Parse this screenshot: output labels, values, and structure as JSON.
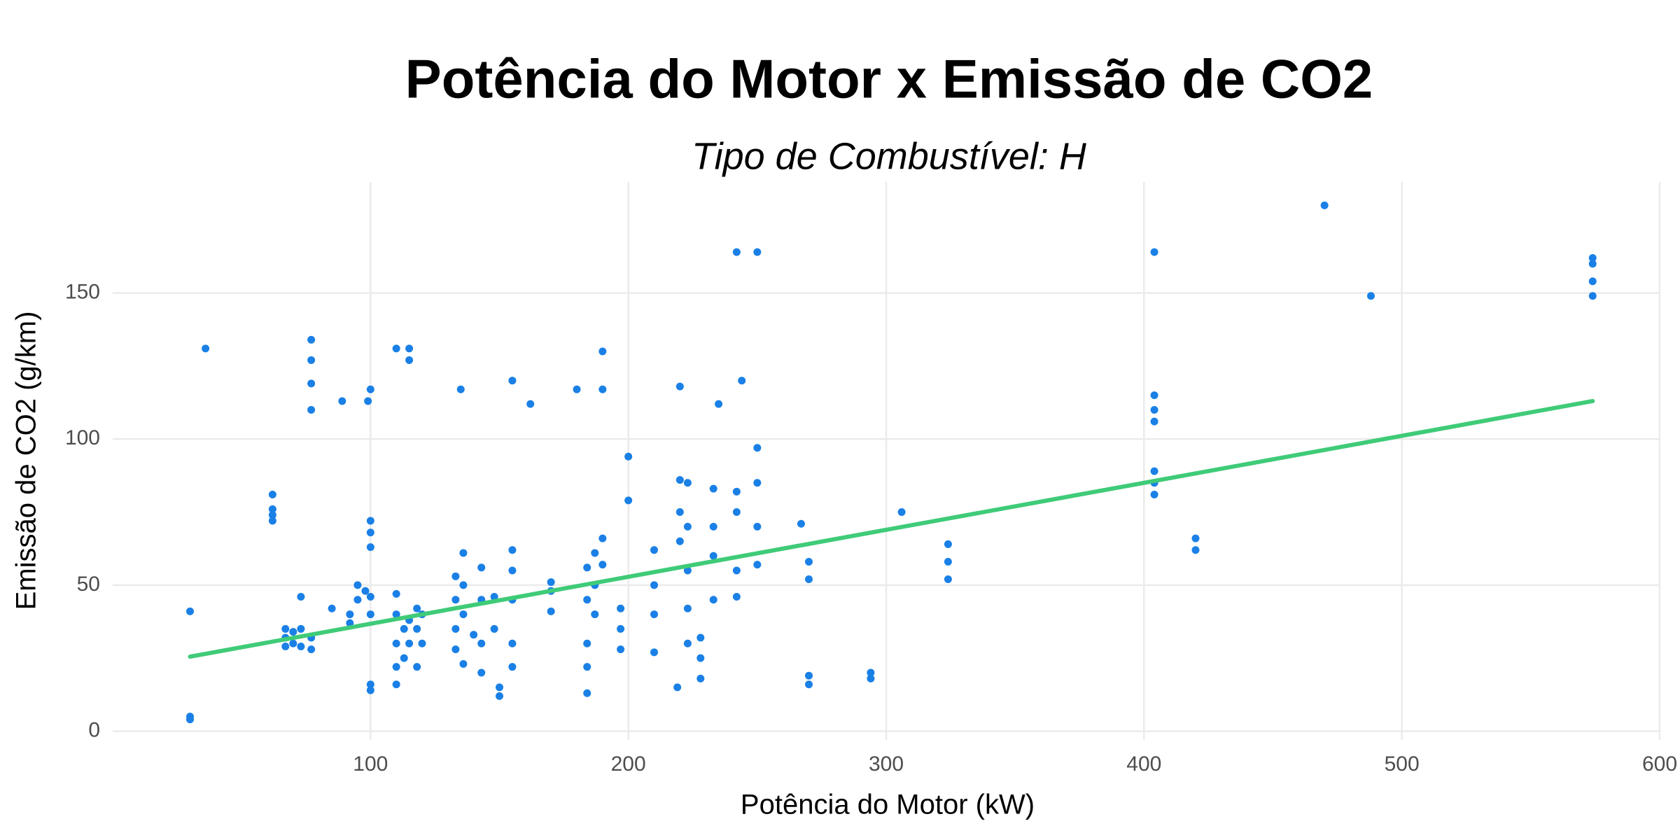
{
  "chart_data": {
    "type": "scatter",
    "title": "Potência do Motor x Emissão de CO2",
    "subtitle": "Tipo de Combustível: H",
    "x_label": "Potência do Motor (kW)",
    "y_label": "Emissão de CO2 (g/km)",
    "xlim": [
      0,
      600
    ],
    "xticks": [
      100,
      200,
      300,
      400,
      500,
      600
    ],
    "ylim": [
      -3,
      188
    ],
    "yticks": [
      0,
      50,
      100,
      150
    ],
    "grid": true,
    "points": {
      "color": "#1a80e6",
      "x": [
        30,
        30,
        30,
        36,
        62,
        62,
        62,
        62,
        67,
        67,
        67,
        70,
        70,
        73,
        73,
        73,
        77,
        77,
        77,
        77,
        77,
        77,
        85,
        89,
        92,
        92,
        95,
        95,
        98,
        100,
        99,
        100,
        100,
        100,
        100,
        100,
        100,
        100,
        110,
        110,
        110,
        110,
        110,
        110,
        113,
        113,
        115,
        115,
        115,
        115,
        118,
        118,
        118,
        120,
        120,
        133,
        133,
        133,
        133,
        135,
        136,
        136,
        136,
        136,
        140,
        143,
        143,
        143,
        143,
        148,
        148,
        150,
        150,
        155,
        155,
        155,
        155,
        155,
        155,
        162,
        170,
        170,
        170,
        180,
        184,
        184,
        184,
        184,
        184,
        187,
        187,
        187,
        190,
        190,
        190,
        190,
        197,
        197,
        197,
        200,
        200,
        210,
        210,
        210,
        210,
        219,
        220,
        220,
        220,
        220,
        223,
        223,
        223,
        223,
        223,
        228,
        228,
        228,
        233,
        233,
        233,
        233,
        235,
        242,
        242,
        242,
        242,
        242,
        244,
        250,
        250,
        250,
        250,
        250,
        267,
        270,
        270,
        270,
        270,
        294,
        294,
        306,
        324,
        324,
        324,
        404,
        404,
        404,
        404,
        404,
        404,
        404,
        420,
        420,
        470,
        488,
        574,
        574,
        574,
        574
      ],
      "y": [
        41,
        5,
        4,
        131,
        81,
        76,
        74,
        72,
        35,
        32,
        29,
        34,
        30,
        46,
        35,
        29,
        134,
        127,
        119,
        110,
        32,
        28,
        42,
        113,
        40,
        37,
        50,
        45,
        48,
        117,
        113,
        72,
        68,
        63,
        46,
        40,
        16,
        14,
        131,
        47,
        40,
        30,
        22,
        16,
        35,
        25,
        131,
        127,
        38,
        30,
        42,
        35,
        22,
        40,
        30,
        53,
        45,
        35,
        28,
        117,
        61,
        50,
        40,
        23,
        33,
        56,
        45,
        30,
        20,
        46,
        35,
        15,
        12,
        120,
        62,
        55,
        45,
        30,
        22,
        112,
        51,
        48,
        41,
        117,
        56,
        45,
        30,
        22,
        13,
        61,
        50,
        40,
        130,
        117,
        66,
        57,
        42,
        35,
        28,
        94,
        79,
        62,
        50,
        40,
        27,
        15,
        118,
        86,
        75,
        65,
        85,
        70,
        55,
        42,
        30,
        32,
        25,
        18,
        83,
        70,
        60,
        45,
        112,
        164,
        82,
        75,
        55,
        46,
        120,
        164,
        97,
        85,
        70,
        57,
        71,
        58,
        52,
        19,
        16,
        20,
        18,
        75,
        64,
        58,
        52,
        164,
        115,
        110,
        106,
        89,
        85,
        81,
        66,
        62,
        180,
        149,
        162,
        160,
        154,
        149
      ]
    },
    "trend": {
      "color": "#3fcb78",
      "x": [
        30,
        574
      ],
      "y": [
        25.5,
        113
      ]
    }
  }
}
